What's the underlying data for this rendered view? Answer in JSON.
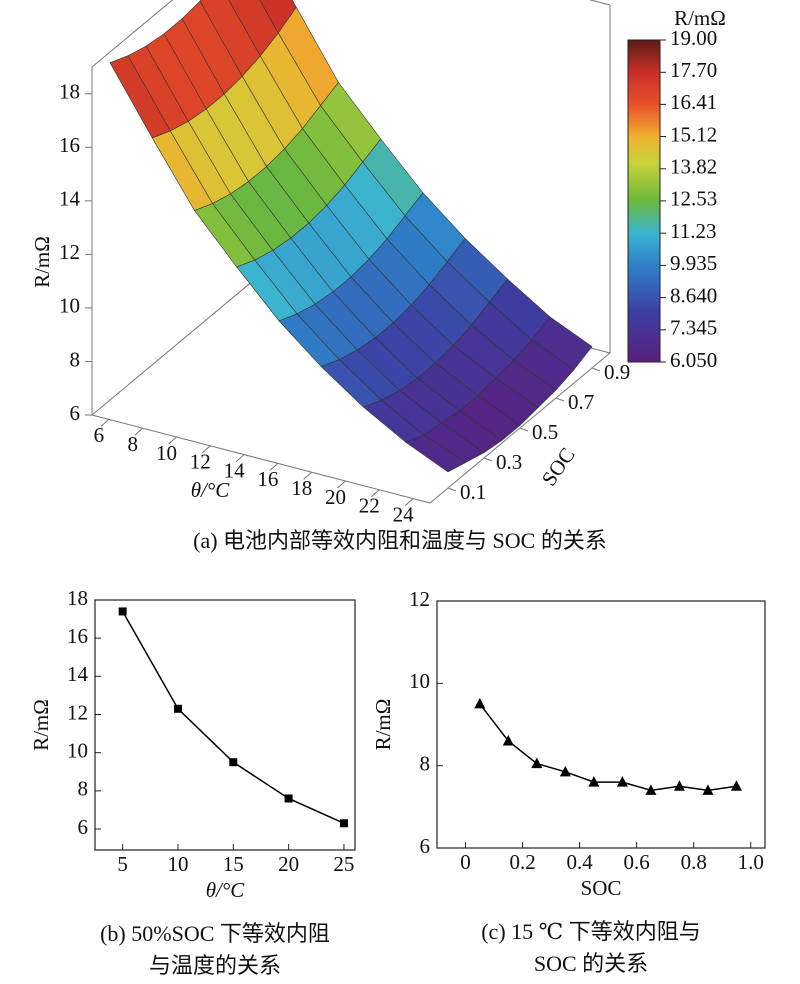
{
  "chart_data": [
    {
      "type": "surface",
      "caption": [
        "(a) 电池内部等效内阻和温度与 SOC 的关系"
      ],
      "xlabel": "θ/°C",
      "ylabel": "SOC",
      "zlabel": "R/mΩ",
      "x": [
        5,
        7.5,
        10,
        12.5,
        15,
        17.5,
        20,
        22.5,
        25
      ],
      "y": [
        0.1,
        0.2,
        0.3,
        0.4,
        0.5,
        0.6,
        0.7,
        0.8,
        0.9
      ],
      "z": [
        [
          18.6,
          18.3,
          18.1,
          18.0,
          18.0,
          18.1,
          18.3,
          18.6,
          19.0
        ],
        [
          16.2,
          15.9,
          15.7,
          15.6,
          15.6,
          15.7,
          15.9,
          16.2,
          16.6
        ],
        [
          13.9,
          13.6,
          13.4,
          13.3,
          13.3,
          13.4,
          13.6,
          13.9,
          14.2
        ],
        [
          12.2,
          11.9,
          11.7,
          11.6,
          11.6,
          11.7,
          11.9,
          12.2,
          12.5
        ],
        [
          10.6,
          10.3,
          10.1,
          10.0,
          10.0,
          10.1,
          10.3,
          10.6,
          10.9
        ],
        [
          9.3,
          9.0,
          8.8,
          8.7,
          8.7,
          8.8,
          9.0,
          9.3,
          9.6
        ],
        [
          8.2,
          7.9,
          7.7,
          7.6,
          7.6,
          7.7,
          7.9,
          8.2,
          8.5
        ],
        [
          7.3,
          7.0,
          6.9,
          6.8,
          6.8,
          6.9,
          7.0,
          7.2,
          7.5
        ],
        [
          6.6,
          6.4,
          6.2,
          6.1,
          6.1,
          6.2,
          6.3,
          6.5,
          6.8
        ]
      ],
      "xlim": [
        5,
        25
      ],
      "xticks": [
        6,
        8,
        10,
        12,
        14,
        16,
        18,
        20,
        22,
        24
      ],
      "ylim": [
        0,
        1
      ],
      "yticks": [
        0.1,
        0.3,
        0.5,
        0.7,
        0.9
      ],
      "zlim": [
        6,
        19
      ],
      "zticks": [
        6,
        8,
        10,
        12,
        14,
        16,
        18
      ],
      "colorbar_title": "R/mΩ",
      "colorbar_lim": [
        6.05,
        19
      ],
      "colorbar_ticks": [
        {
          "value": 19,
          "label": "19.00"
        },
        {
          "value": 17.7,
          "label": "17.70"
        },
        16.41,
        15.12,
        13.82,
        12.53,
        11.23,
        9.935,
        {
          "value": 8.64,
          "label": "8.640"
        },
        7.345,
        {
          "value": 6.05,
          "label": "6.050"
        }
      ]
    },
    {
      "type": "line",
      "caption": [
        "(b) 50%SOC 下等效内阻",
        "与温度的关系"
      ],
      "xlabel": "θ/°C",
      "ylabel": "R/mΩ",
      "marker": "square",
      "color": "#000000",
      "x": [
        5,
        10,
        15,
        20,
        25
      ],
      "values": [
        17.4,
        12.3,
        9.5,
        7.6,
        6.3
      ],
      "xlim": [
        2.5,
        26
      ],
      "xticks": [
        5,
        10,
        15,
        20,
        25
      ],
      "ylim": [
        4.9,
        18
      ],
      "yticks": [
        6,
        8,
        10,
        12,
        14,
        16,
        18
      ]
    },
    {
      "type": "line",
      "caption": [
        "(c) 15 ℃ 下等效内阻与",
        "SOC 的关系"
      ],
      "xlabel": "SOC",
      "ylabel": "R/mΩ",
      "marker": "triangle",
      "color": "#000000",
      "x": [
        0.05,
        0.15,
        0.25,
        0.35,
        0.45,
        0.55,
        0.65,
        0.75,
        0.85,
        0.95
      ],
      "values": [
        9.5,
        8.6,
        8.05,
        7.85,
        7.6,
        7.6,
        7.4,
        7.5,
        7.4,
        7.5
      ],
      "xlim": [
        -0.1,
        1.05
      ],
      "xticks": [
        0,
        0.2,
        0.4,
        0.6,
        0.8,
        {
          "value": 1,
          "label": "1.0"
        }
      ],
      "ylim": [
        6,
        12
      ],
      "yticks": [
        6,
        8,
        10,
        12
      ]
    }
  ]
}
